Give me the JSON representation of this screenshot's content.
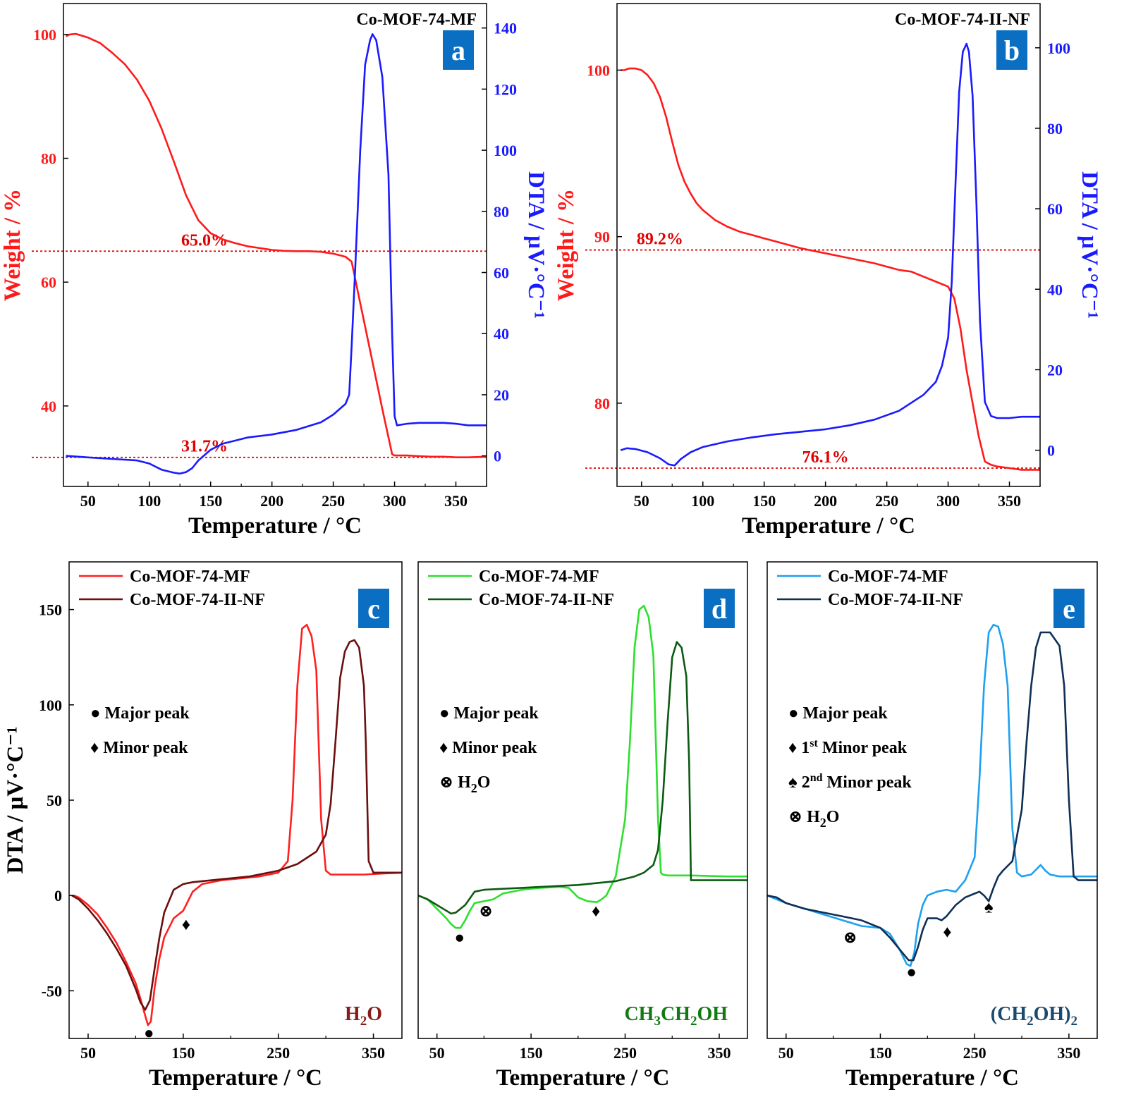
{
  "colors": {
    "red": "#ff1a1a",
    "blue": "#1a1aff",
    "badge": "#0a6fc2",
    "c_mf": "#ff2020",
    "c_nf": "#6b0f0f",
    "d_mf": "#2ce02c",
    "d_nf": "#0c5a12",
    "e_mf": "#1ea0f0",
    "e_nf": "#0f2f55",
    "solv_c": "#8b1a1a",
    "solv_d": "#137a13",
    "solv_e": "#1a4a6e",
    "annot": "#e00000"
  },
  "chart_data": [
    {
      "id": "a",
      "type": "line",
      "badge": "a",
      "sample_label": "Co-MOF-74-MF",
      "xlabel": "Temperature / °C",
      "ylabel_left": "Weight / %",
      "ylabel_right": "DTA / μV·°C⁻¹",
      "xlim": [
        30,
        375
      ],
      "ylim_left": [
        27,
        105
      ],
      "ylim_right": [
        -10,
        148
      ],
      "x_ticks": [
        50,
        100,
        150,
        200,
        250,
        300,
        350
      ],
      "y_left_ticks": [
        40,
        60,
        80,
        100
      ],
      "y_right_ticks": [
        0,
        20,
        40,
        60,
        80,
        100,
        120,
        140
      ],
      "annotations": [
        {
          "text": "65.0%",
          "y": 65.0,
          "x_text": 145
        },
        {
          "text": "31.7%",
          "y": 31.7,
          "x_text": 145
        }
      ],
      "series": [
        {
          "name": "Weight",
          "axis": "left",
          "color_key": "red",
          "x": [
            32,
            35,
            40,
            50,
            60,
            70,
            80,
            90,
            100,
            110,
            120,
            130,
            140,
            150,
            160,
            170,
            180,
            190,
            200,
            210,
            220,
            230,
            240,
            250,
            260,
            265,
            270,
            280,
            290,
            298,
            300,
            310,
            320,
            330,
            340,
            350,
            360,
            375
          ],
          "y": [
            99.7,
            100,
            100.1,
            99.5,
            98.6,
            97.0,
            95.2,
            92.7,
            89.3,
            84.8,
            79.5,
            74.0,
            70.0,
            67.9,
            66.9,
            66.3,
            65.8,
            65.5,
            65.2,
            65.05,
            65.0,
            65.0,
            64.9,
            64.6,
            64.1,
            63.3,
            58.5,
            49.0,
            39.5,
            32.2,
            32.0,
            32.0,
            31.9,
            31.8,
            31.8,
            31.7,
            31.7,
            31.8
          ]
        },
        {
          "name": "DTA",
          "axis": "right",
          "color_key": "blue",
          "x": [
            32,
            50,
            70,
            90,
            100,
            110,
            120,
            125,
            130,
            135,
            140,
            150,
            160,
            170,
            180,
            200,
            220,
            240,
            250,
            260,
            263,
            265,
            268,
            272,
            276,
            280,
            282,
            285,
            290,
            295,
            298,
            300,
            302,
            310,
            320,
            330,
            340,
            350,
            360,
            375
          ],
          "y": [
            0,
            -0.5,
            -1,
            -1.5,
            -2.5,
            -4.5,
            -5.5,
            -5.8,
            -5.3,
            -4,
            -1.5,
            2,
            4,
            5,
            6,
            7,
            8.5,
            11,
            13.5,
            17,
            20,
            36,
            62,
            100,
            128,
            136,
            138,
            136,
            124,
            92,
            40,
            13,
            10,
            10.5,
            10.8,
            10.8,
            10.8,
            10.5,
            10,
            10
          ]
        }
      ]
    },
    {
      "id": "b",
      "type": "line",
      "badge": "b",
      "sample_label": "Co-MOF-74-II-NF",
      "xlabel": "Temperature / °C",
      "ylabel_left": "Weight / %",
      "ylabel_right": "DTA / μV·°C⁻¹",
      "xlim": [
        30,
        375
      ],
      "ylim_left": [
        75,
        104
      ],
      "ylim_right": [
        -9,
        111
      ],
      "x_ticks": [
        50,
        100,
        150,
        200,
        250,
        300,
        350
      ],
      "y_left_ticks": [
        80,
        90,
        100
      ],
      "y_right_ticks": [
        0,
        20,
        40,
        60,
        80,
        100
      ],
      "annotations": [
        {
          "text": "89.2%",
          "y": 89.2,
          "x_text": 65
        },
        {
          "text": "76.1%",
          "y": 76.1,
          "x_text": 200
        }
      ],
      "series": [
        {
          "name": "Weight",
          "axis": "left",
          "color_key": "red",
          "x": [
            33,
            36,
            40,
            45,
            50,
            55,
            60,
            65,
            70,
            75,
            80,
            85,
            90,
            95,
            100,
            110,
            120,
            130,
            140,
            150,
            160,
            170,
            180,
            200,
            220,
            240,
            260,
            270,
            280,
            290,
            300,
            305,
            310,
            315,
            320,
            325,
            330,
            335,
            340,
            350,
            360,
            375
          ],
          "y": [
            100,
            100,
            100.1,
            100.1,
            100,
            99.7,
            99.2,
            98.4,
            97.2,
            95.7,
            94.3,
            93.3,
            92.6,
            92.0,
            91.6,
            91.0,
            90.6,
            90.3,
            90.1,
            89.9,
            89.7,
            89.5,
            89.3,
            89.0,
            88.7,
            88.4,
            88.0,
            87.9,
            87.6,
            87.3,
            87.0,
            86.3,
            84.5,
            82,
            80,
            78,
            76.5,
            76.3,
            76.2,
            76.1,
            76,
            76
          ]
        },
        {
          "name": "DTA",
          "axis": "right",
          "color_key": "blue",
          "x": [
            33,
            38,
            45,
            55,
            65,
            72,
            77,
            82,
            90,
            100,
            120,
            140,
            160,
            180,
            200,
            220,
            240,
            260,
            280,
            290,
            295,
            300,
            303,
            306,
            309,
            312,
            315,
            317,
            320,
            323,
            326,
            330,
            335,
            340,
            350,
            360,
            375
          ],
          "y": [
            0,
            0.5,
            0.3,
            -0.5,
            -2,
            -3.5,
            -3.8,
            -2.2,
            -0.5,
            0.8,
            2.2,
            3.2,
            4,
            4.6,
            5.2,
            6.2,
            7.6,
            9.8,
            13.8,
            17,
            21,
            28,
            42,
            66,
            89,
            99,
            101,
            99,
            88,
            62,
            32,
            12,
            8.5,
            8,
            8,
            8.3,
            8.3
          ]
        }
      ]
    },
    {
      "id": "c",
      "type": "line",
      "badge": "c",
      "solvent_html": "H<tspan dy=\"7\" font-size=\"19\">2</tspan><tspan dy=\"-7\">O</tspan>",
      "xlabel": "Temperature / °C",
      "ylabel": "DTA / μV·°C⁻¹",
      "xlim": [
        30,
        380
      ],
      "ylim": [
        -75,
        175
      ],
      "x_ticks": [
        50,
        150,
        250,
        350
      ],
      "y_ticks": [
        -50,
        0,
        50,
        100,
        150
      ],
      "legend": [
        "Co-MOF-74-MF",
        "Co-MOF-74-II-NF"
      ],
      "markers_legend": [
        {
          "symbol": "●",
          "text": "Major peak"
        },
        {
          "symbol": "♦",
          "text": "Minor peak"
        }
      ],
      "markers": [
        {
          "symbol": "●",
          "x": 114,
          "y": -72
        },
        {
          "symbol": "♦",
          "x": 153,
          "y": -15
        }
      ],
      "series": [
        {
          "name": "Co-MOF-74-MF",
          "color_key": "c_mf",
          "x": [
            35,
            40,
            50,
            60,
            70,
            80,
            90,
            100,
            105,
            110,
            113,
            116,
            120,
            125,
            130,
            140,
            150,
            160,
            170,
            190,
            210,
            230,
            250,
            260,
            265,
            270,
            275,
            280,
            285,
            290,
            295,
            300,
            305,
            320,
            340,
            360,
            380
          ],
          "y": [
            0,
            -1,
            -5,
            -10,
            -17,
            -25,
            -35,
            -46,
            -54,
            -63,
            -68,
            -66,
            -48,
            -33,
            -22,
            -12,
            -8,
            2,
            6,
            8,
            9,
            10,
            12,
            18,
            50,
            110,
            140,
            142,
            136,
            118,
            40,
            13,
            11,
            11,
            11,
            11.5,
            12
          ]
        },
        {
          "name": "Co-MOF-74-II-NF",
          "color_key": "c_nf",
          "x": [
            33,
            40,
            50,
            60,
            70,
            80,
            90,
            100,
            105,
            110,
            115,
            120,
            125,
            130,
            140,
            150,
            160,
            170,
            190,
            220,
            250,
            270,
            290,
            300,
            305,
            310,
            315,
            320,
            325,
            330,
            335,
            340,
            342,
            345,
            350,
            360,
            380
          ],
          "y": [
            0,
            -2,
            -7,
            -13,
            -20,
            -28,
            -37,
            -49,
            -56,
            -60,
            -55,
            -38,
            -22,
            -9,
            3,
            6,
            7,
            7.5,
            8.5,
            10,
            13,
            16.5,
            23,
            32,
            48,
            80,
            114,
            128,
            133,
            134,
            130,
            110,
            80,
            18,
            12,
            12,
            12
          ]
        }
      ]
    },
    {
      "id": "d",
      "type": "line",
      "badge": "d",
      "solvent_html": "CH<tspan dy=\"7\" font-size=\"19\">3</tspan><tspan dy=\"-7\">CH</tspan><tspan dy=\"7\" font-size=\"19\">2</tspan><tspan dy=\"-7\">OH</tspan>",
      "xlabel": "Temperature / °C",
      "ylabel": "",
      "xlim": [
        30,
        380
      ],
      "ylim": [
        -75,
        175
      ],
      "x_ticks": [
        50,
        150,
        250,
        350
      ],
      "y_ticks": [],
      "legend": [
        "Co-MOF-74-MF",
        "Co-MOF-74-II-NF"
      ],
      "markers_legend": [
        {
          "symbol": "●",
          "text": "Major peak"
        },
        {
          "symbol": "♦",
          "text": "Minor peak"
        },
        {
          "symbol": "⊗",
          "text": "H₂O"
        }
      ],
      "markers": [
        {
          "symbol": "●",
          "x": 74,
          "y": -22
        },
        {
          "symbol": "⊗",
          "x": 102,
          "y": -8
        },
        {
          "symbol": "♦",
          "x": 219,
          "y": -8
        }
      ],
      "series": [
        {
          "name": "Co-MOF-74-MF",
          "color_key": "d_mf",
          "x": [
            30,
            40,
            50,
            60,
            65,
            70,
            75,
            80,
            85,
            90,
            100,
            110,
            120,
            140,
            160,
            180,
            190,
            200,
            210,
            220,
            225,
            230,
            240,
            250,
            255,
            260,
            265,
            270,
            275,
            280,
            285,
            288,
            290,
            295,
            300,
            320,
            340,
            360,
            380
          ],
          "y": [
            0,
            -2,
            -7,
            -12,
            -15,
            -17,
            -17,
            -13,
            -8,
            -4,
            -3,
            -2,
            1,
            3,
            4,
            4.5,
            4,
            -1,
            -3,
            -3.5,
            -2,
            0,
            10,
            40,
            80,
            130,
            150,
            152,
            146,
            126,
            40,
            12,
            11,
            10.5,
            10.5,
            10.5,
            10.2,
            10,
            10
          ]
        },
        {
          "name": "Co-MOF-74-II-NF",
          "color_key": "d_nf",
          "x": [
            30,
            40,
            50,
            60,
            65,
            70,
            75,
            80,
            90,
            100,
            120,
            140,
            160,
            180,
            200,
            220,
            240,
            260,
            270,
            280,
            285,
            290,
            295,
            300,
            305,
            310,
            315,
            318,
            320,
            330,
            350,
            380
          ],
          "y": [
            0,
            -2,
            -5,
            -8,
            -9.5,
            -9,
            -7,
            -5,
            2,
            3,
            3.5,
            4,
            4.5,
            5,
            5.5,
            6.5,
            7.5,
            10,
            12,
            16,
            24,
            50,
            90,
            125,
            133,
            130,
            115,
            70,
            8,
            8,
            8,
            8
          ]
        }
      ]
    },
    {
      "id": "e",
      "type": "line",
      "badge": "e",
      "solvent_html": "(CH<tspan dy=\"7\" font-size=\"19\">2</tspan><tspan dy=\"-7\">OH)</tspan><tspan dy=\"7\" font-size=\"19\">2</tspan>",
      "xlabel": "Temperature / °C",
      "ylabel": "",
      "xlim": [
        30,
        380
      ],
      "ylim": [
        -75,
        175
      ],
      "x_ticks": [
        50,
        150,
        250,
        350
      ],
      "y_ticks": [],
      "legend": [
        "Co-MOF-74-MF",
        "Co-MOF-74-II-NF"
      ],
      "markers_legend": [
        {
          "symbol": "●",
          "text": "Major peak"
        },
        {
          "symbol": "♦",
          "text": "1st Minor peak"
        },
        {
          "symbol": "♠",
          "text": "2nd Minor peak"
        },
        {
          "symbol": "⊗",
          "text": "H₂O"
        }
      ],
      "markers": [
        {
          "symbol": "●",
          "x": 183,
          "y": -40
        },
        {
          "symbol": "♦",
          "x": 221,
          "y": -19
        },
        {
          "symbol": "♠",
          "x": 265,
          "y": -6
        },
        {
          "symbol": "⊗",
          "x": 118,
          "y": -22
        }
      ],
      "series": [
        {
          "name": "Co-MOF-74-MF",
          "color_key": "e_mf",
          "x": [
            30,
            50,
            70,
            90,
            110,
            130,
            150,
            160,
            170,
            178,
            182,
            186,
            190,
            195,
            200,
            210,
            220,
            230,
            240,
            250,
            255,
            260,
            265,
            270,
            275,
            280,
            285,
            290,
            295,
            300,
            310,
            320,
            325,
            330,
            340,
            360,
            380
          ],
          "y": [
            0,
            -4,
            -7,
            -10,
            -13,
            -16,
            -17,
            -20,
            -28,
            -36,
            -37,
            -30,
            -15,
            -5,
            0,
            2,
            3,
            2,
            8,
            20,
            60,
            110,
            138,
            142,
            141,
            132,
            110,
            35,
            12,
            10,
            11,
            16,
            13,
            11,
            10,
            10,
            10
          ]
        },
        {
          "name": "Co-MOF-74-II-NF",
          "color_key": "e_nf",
          "x": [
            30,
            40,
            50,
            70,
            90,
            110,
            130,
            150,
            160,
            170,
            180,
            185,
            190,
            195,
            200,
            205,
            210,
            215,
            220,
            225,
            230,
            240,
            250,
            255,
            260,
            265,
            270,
            275,
            280,
            290,
            300,
            305,
            310,
            315,
            320,
            330,
            340,
            345,
            350,
            355,
            360,
            380
          ],
          "y": [
            0,
            -1,
            -4,
            -7,
            -9,
            -11,
            -13,
            -17,
            -22,
            -28,
            -34,
            -34,
            -27,
            -18,
            -12,
            -12,
            -12,
            -13,
            -11,
            -8,
            -5,
            -1,
            1,
            2,
            0,
            -3,
            4,
            10,
            13,
            18,
            45,
            80,
            110,
            130,
            138,
            138,
            131,
            110,
            50,
            10,
            8,
            8
          ]
        }
      ]
    }
  ]
}
